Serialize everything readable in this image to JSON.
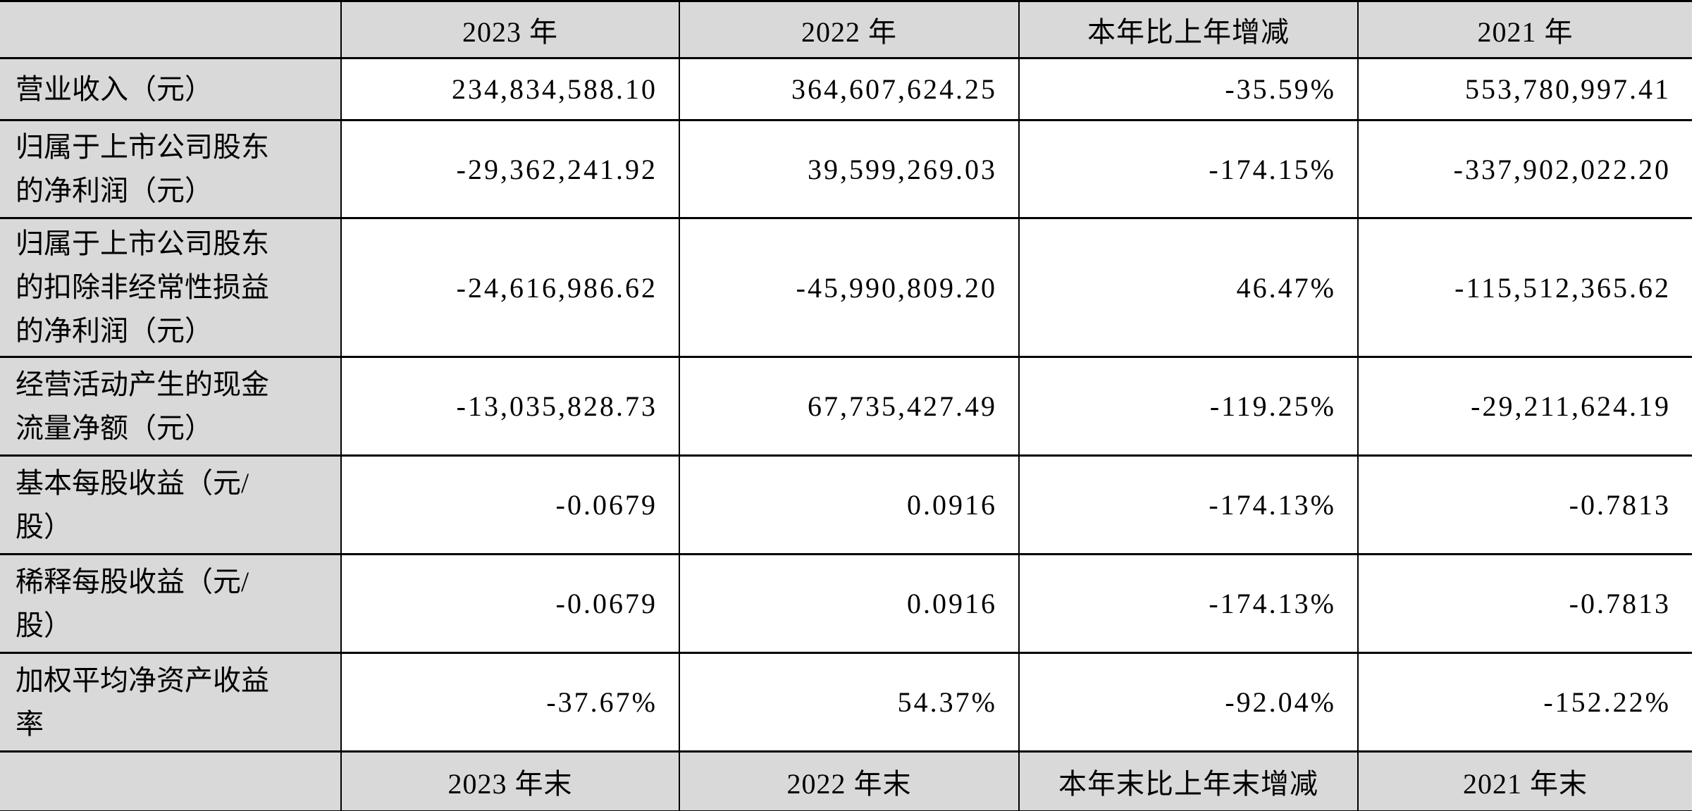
{
  "table": {
    "header": [
      "",
      "2023 年",
      "2022 年",
      "本年比上年增减",
      "2021 年"
    ],
    "rows": [
      {
        "label": "营业收入（元）",
        "values": [
          "234,834,588.10",
          "364,607,624.25",
          "-35.59%",
          "553,780,997.41"
        ]
      },
      {
        "label": "归属于上市公司股东\n的净利润（元）",
        "values": [
          "-29,362,241.92",
          "39,599,269.03",
          "-174.15%",
          "-337,902,022.20"
        ]
      },
      {
        "label": "归属于上市公司股东\n的扣除非经常性损益\n的净利润（元）",
        "values": [
          "-24,616,986.62",
          "-45,990,809.20",
          "46.47%",
          "-115,512,365.62"
        ]
      },
      {
        "label": "经营活动产生的现金\n流量净额（元）",
        "values": [
          "-13,035,828.73",
          "67,735,427.49",
          "-119.25%",
          "-29,211,624.19"
        ]
      },
      {
        "label": "基本每股收益（元/\n股）",
        "values": [
          "-0.0679",
          "0.0916",
          "-174.13%",
          "-0.7813"
        ]
      },
      {
        "label": "稀释每股收益（元/\n股）",
        "values": [
          "-0.0679",
          "0.0916",
          "-174.13%",
          "-0.7813"
        ]
      },
      {
        "label": "加权平均净资产收益\n率",
        "values": [
          "-37.67%",
          "54.37%",
          "-92.04%",
          "-152.22%"
        ]
      }
    ],
    "footer": [
      "",
      "2023 年末",
      "2022 年末",
      "本年末比上年末增减",
      "2021 年末"
    ]
  },
  "colors": {
    "cell_shading": "#d9d9d9",
    "border": "#000000",
    "background": "#ffffff",
    "text": "#000000"
  }
}
